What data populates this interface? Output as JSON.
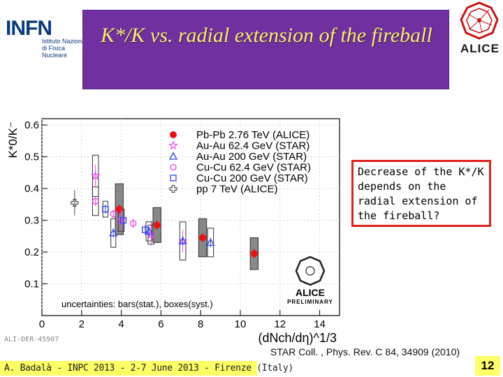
{
  "header": {
    "title": "K*/K  vs.  radial  extension of the fireball",
    "infn_logo": {
      "name": "INFN",
      "subtitle": "Istituto Nazionale di Fisica Nucleare"
    },
    "alice_logo": {
      "name": "ALICE"
    }
  },
  "note": {
    "text": "Decrease of the K*/K depends on  the radial extension of the fireball?"
  },
  "citation": "STAR Coll. , Phys. Rev. C 84, 34909 (2010)",
  "footer": {
    "text": "A. Badalà - INPC 2013 - 2-7 June 2013 - Firenze (Italy)",
    "page": "12"
  },
  "colors": {
    "title_bg": "#7030a0",
    "title_text": "#ffe680",
    "note_border": "#e02020",
    "footer_bg": "#ffff66"
  },
  "chart_data": {
    "type": "scatter",
    "xlabel": "(dNch/dη)^1/3",
    "ylabel": "K*0/K⁻",
    "xlim": [
      0,
      15
    ],
    "ylim": [
      0,
      0.62
    ],
    "x_ticks": [
      0,
      2,
      4,
      6,
      8,
      10,
      12,
      14
    ],
    "y_ticks": [
      0.1,
      0.2,
      0.3,
      0.4,
      0.5,
      0.6
    ],
    "legend_position": "top-right",
    "annotation": "uncertainties: bars(stat.), boxes(syst.)",
    "watermark": "ALICE PRELIMINARY",
    "figure_id": "ALI-DER-45907",
    "series": [
      {
        "name": "Pb-Pb 2.76 TeV (ALICE)",
        "color": "#ee1111",
        "marker": "circle-filled",
        "points": [
          {
            "x": 3.9,
            "y": 0.335
          },
          {
            "x": 5.8,
            "y": 0.285
          },
          {
            "x": 8.1,
            "y": 0.245
          },
          {
            "x": 10.7,
            "y": 0.195
          }
        ]
      },
      {
        "name": "Au-Au 62.4 GeV (STAR)",
        "color": "#ee44ee",
        "marker": "star",
        "points": [
          {
            "x": 2.7,
            "y": 0.44
          },
          {
            "x": 4.0,
            "y": 0.3
          },
          {
            "x": 5.5,
            "y": 0.255
          },
          {
            "x": 7.1,
            "y": 0.235
          }
        ]
      },
      {
        "name": "Au-Au 200 GeV (STAR)",
        "color": "#3344ee",
        "marker": "triangle-open",
        "points": [
          {
            "x": 3.6,
            "y": 0.26
          },
          {
            "x": 5.4,
            "y": 0.265
          },
          {
            "x": 7.1,
            "y": 0.235
          },
          {
            "x": 8.5,
            "y": 0.23
          }
        ]
      },
      {
        "name": "Cu-Cu 62.4 GeV (STAR)",
        "color": "#ee44ee",
        "marker": "circle-open",
        "points": [
          {
            "x": 2.7,
            "y": 0.36
          },
          {
            "x": 3.6,
            "y": 0.32
          },
          {
            "x": 4.6,
            "y": 0.29
          }
        ]
      },
      {
        "name": "Cu-Cu 200 GeV (STAR)",
        "color": "#3344ee",
        "marker": "square-open",
        "points": [
          {
            "x": 3.2,
            "y": 0.335
          },
          {
            "x": 4.1,
            "y": 0.3
          },
          {
            "x": 5.2,
            "y": 0.27
          }
        ]
      },
      {
        "name": "pp 7 TeV (ALICE)",
        "color": "#444444",
        "marker": "cross-open",
        "points": [
          {
            "x": 1.65,
            "y": 0.355
          }
        ]
      }
    ]
  }
}
